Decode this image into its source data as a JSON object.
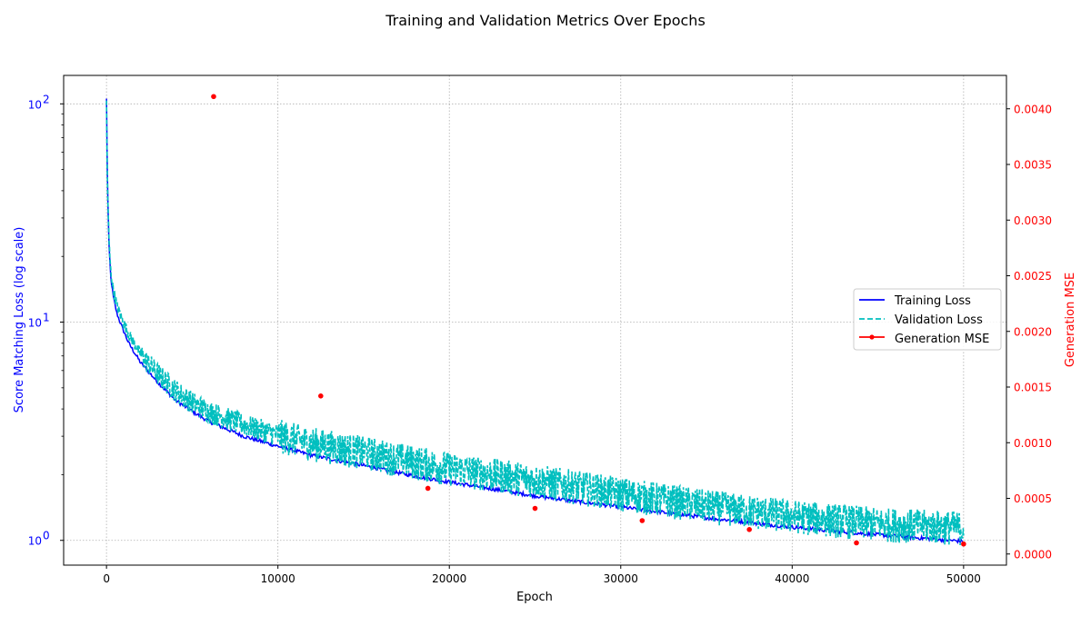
{
  "chart_data": {
    "type": "line",
    "title": "Training and Validation Metrics Over Epochs",
    "xlabel": "Epoch",
    "ylabel_left": "Score Matching Loss (log scale)",
    "ylabel_right": "Generation MSE",
    "xlim": [
      -2500,
      52500
    ],
    "x_ticks": [
      0,
      10000,
      20000,
      30000,
      40000,
      50000
    ],
    "y_left_scale": "log",
    "y_left_lim": [
      0.77,
      135
    ],
    "y_left_ticks": [
      {
        "value": 1,
        "base": "10",
        "exp": "0"
      },
      {
        "value": 10,
        "base": "10",
        "exp": "1"
      },
      {
        "value": 100,
        "base": "10",
        "exp": "2"
      }
    ],
    "y_right_lim": [
      -0.0001,
      0.0043
    ],
    "y_right_ticks": [
      "0.0000",
      "0.0005",
      "0.0010",
      "0.0015",
      "0.0020",
      "0.0025",
      "0.0030",
      "0.0035",
      "0.0040"
    ],
    "grid": true,
    "legend_position": "center-right",
    "colors": {
      "training": "#0000ff",
      "validation": "#00bfbf",
      "generation": "#ff0000",
      "left_axis": "#0000ff",
      "right_axis": "#ff0000"
    },
    "series": [
      {
        "name": "Training Loss",
        "axis": "left",
        "style": "solid",
        "x": [
          0,
          30,
          80,
          150,
          250,
          400,
          600,
          900,
          1300,
          2000,
          3000,
          4000,
          5000,
          6000,
          8000,
          10000,
          12000,
          15000,
          18000,
          20000,
          25000,
          30000,
          35000,
          40000,
          45000,
          50000
        ],
        "y": [
          105,
          60,
          35,
          22,
          16,
          13,
          11,
          9.5,
          8,
          6.5,
          5.3,
          4.4,
          3.9,
          3.5,
          3.0,
          2.7,
          2.45,
          2.2,
          1.97,
          1.85,
          1.6,
          1.42,
          1.27,
          1.15,
          1.06,
          0.99
        ]
      },
      {
        "name": "Validation Loss",
        "axis": "left",
        "style": "dashed",
        "x": [
          0,
          30,
          80,
          150,
          250,
          400,
          600,
          900,
          1300,
          2000,
          3000,
          4000,
          5000,
          6000,
          8000,
          10000,
          12000,
          15000,
          18000,
          20000,
          25000,
          30000,
          35000,
          40000,
          45000,
          50000
        ],
        "y": [
          100,
          58,
          36,
          23,
          17,
          14,
          12,
          10.3,
          8.8,
          7.1,
          5.8,
          4.9,
          4.3,
          3.9,
          3.4,
          3.05,
          2.8,
          2.55,
          2.3,
          2.15,
          1.9,
          1.65,
          1.45,
          1.3,
          1.2,
          1.15
        ]
      },
      {
        "name": "Generation MSE",
        "axis": "right",
        "style": "points",
        "x": [
          6250,
          12500,
          18750,
          25000,
          31250,
          37500,
          43750,
          50000
        ],
        "y": [
          0.00411,
          0.00142,
          0.00059,
          0.00041,
          0.0003,
          0.00022,
          0.0001,
          9e-05
        ]
      }
    ]
  }
}
